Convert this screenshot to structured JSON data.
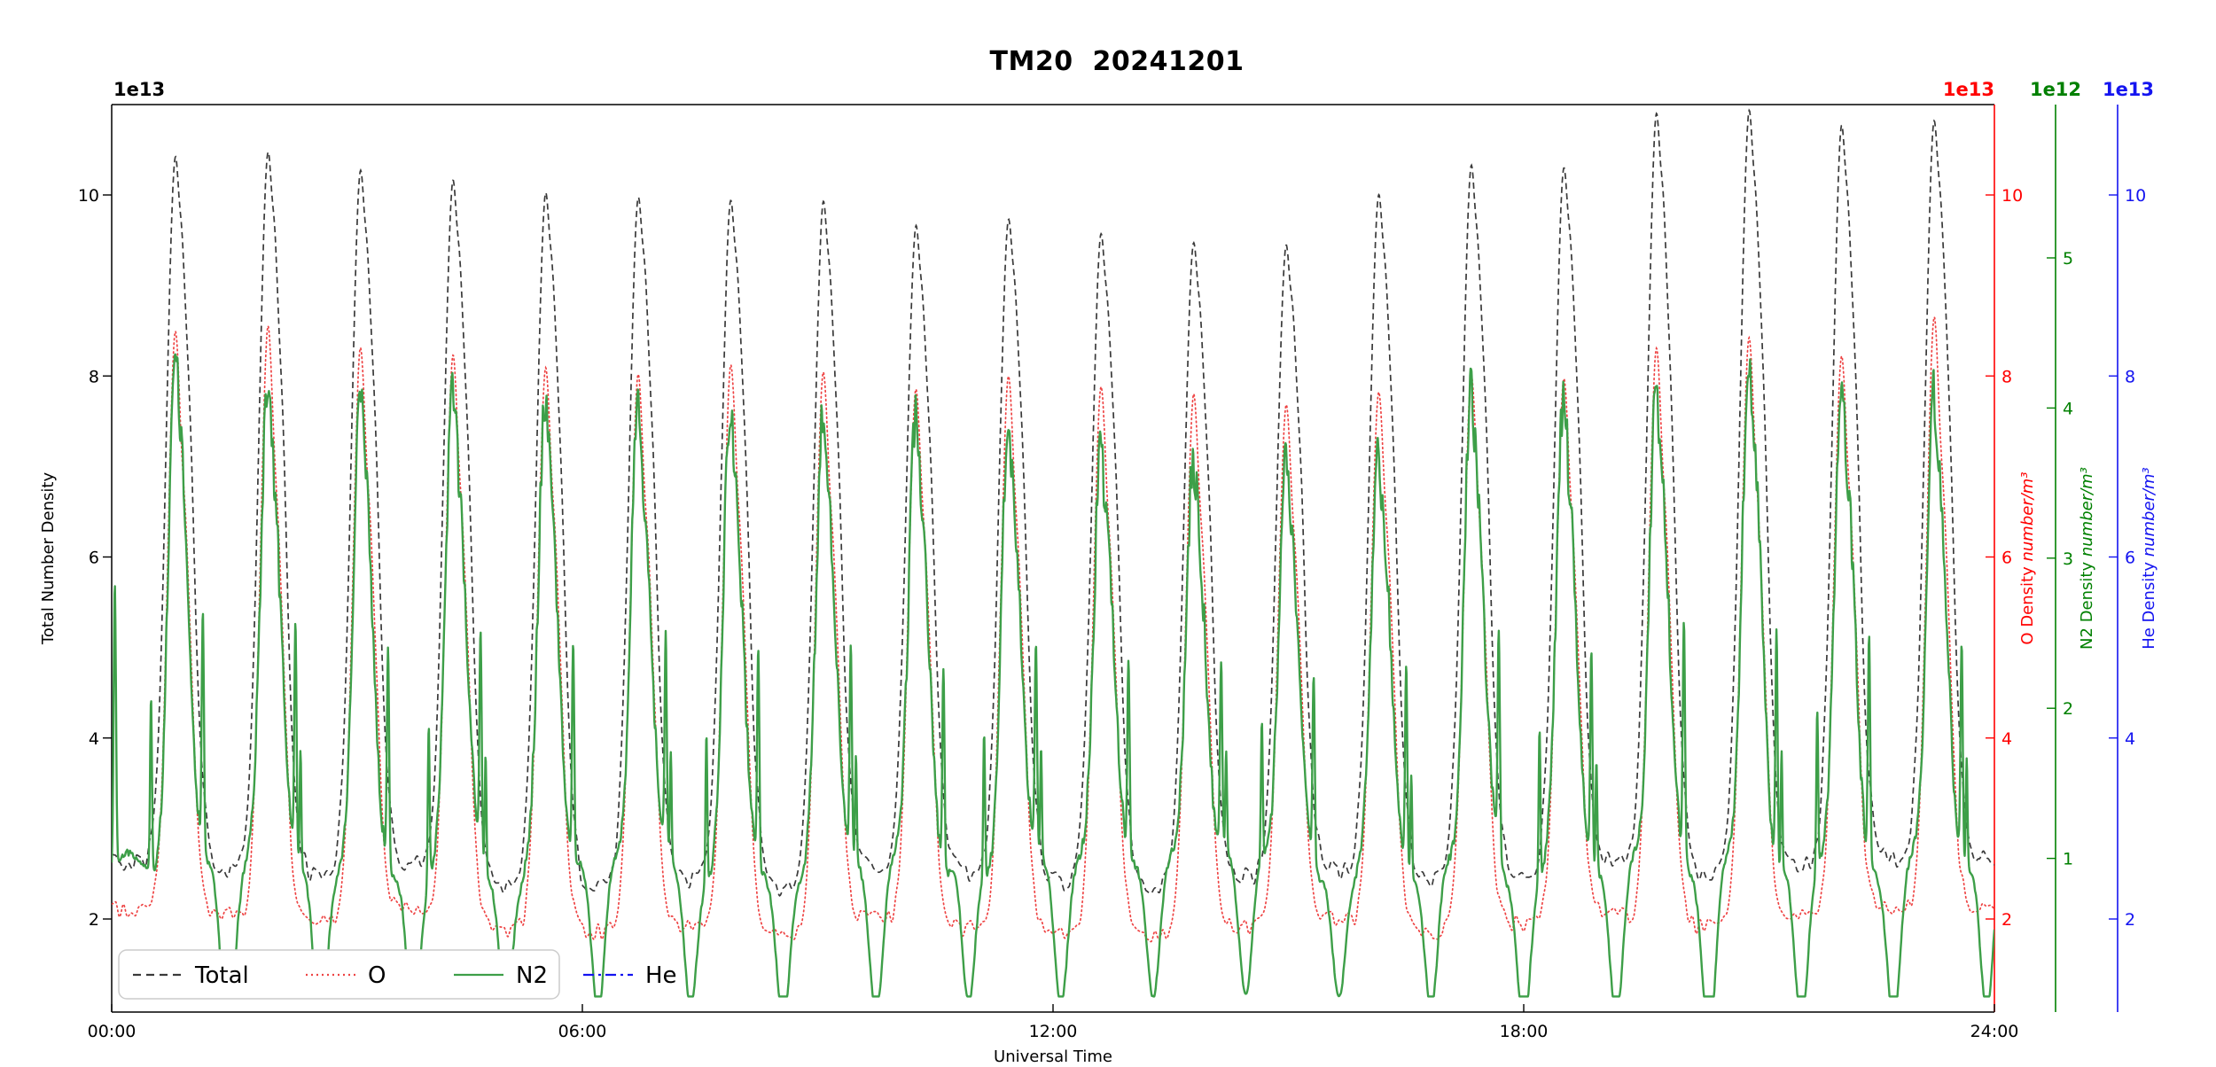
{
  "title": "TM20  20241201",
  "chart_data": {
    "type": "line",
    "title": "TM20  20241201",
    "xlabel": "Universal Time",
    "x_axis": {
      "ticks": [
        "00:00",
        "06:00",
        "12:00",
        "18:00",
        "24:00"
      ],
      "range_hours": [
        0,
        24
      ],
      "grid": false
    },
    "axes": {
      "left": {
        "offset_text": "1e13",
        "label": "Total Number Density",
        "unit": "",
        "ticks": [
          2,
          4,
          6,
          8,
          10
        ],
        "range_1e13": [
          1,
          11
        ],
        "color": "#000000"
      },
      "o": {
        "offset_text": "1e13",
        "label": "O Density ",
        "unit": "number/m³",
        "ticks": [
          2,
          4,
          6,
          8,
          10
        ],
        "range_1e13": [
          1,
          11
        ],
        "color": "#ff0000"
      },
      "n2": {
        "offset_text": "1e12",
        "label": "N2 Density ",
        "unit": "number/m³",
        "ticks": [
          1,
          2,
          3,
          4,
          5
        ],
        "range_1e12": [
          0,
          6
        ],
        "color": "#008000"
      },
      "he": {
        "offset_text": "1e13",
        "label": "He Density ",
        "unit": "number/m³",
        "ticks": [
          2,
          4,
          6,
          8,
          10
        ],
        "range_1e13": [
          1,
          11
        ],
        "color": "#1414f0"
      }
    },
    "legend": {
      "position": "lower left",
      "entries": [
        {
          "label": "Total",
          "color": "#3a3a3a",
          "style": "dashed"
        },
        {
          "label": "O",
          "color": "#ee4444",
          "style": "dotted"
        },
        {
          "label": "N2",
          "color": "#3d9f48",
          "style": "solid"
        },
        {
          "label": "He",
          "color": "#1414f0",
          "style": "dashdot"
        }
      ]
    },
    "series_readings": {
      "description_total_o_in_1e13_n2_in_1e12": true,
      "orbit_period_hours": 1.18,
      "orbit_peak_times_h": [
        0.82,
        2.0,
        3.18,
        4.36,
        5.54,
        6.72,
        7.9,
        9.08,
        10.26,
        11.44,
        12.62,
        13.8,
        14.98,
        16.16,
        17.34,
        18.52,
        19.7,
        20.88,
        22.06,
        23.24
      ],
      "total_peaks_1e13": [
        10.45,
        10.52,
        10.32,
        10.2,
        10.08,
        10.02,
        10.0,
        9.95,
        9.7,
        9.78,
        9.6,
        9.52,
        9.5,
        10.05,
        10.38,
        10.35,
        10.95,
        10.98,
        10.8,
        10.88
      ],
      "o_peaks_1e13": [
        8.58,
        8.62,
        8.4,
        8.3,
        8.2,
        8.1,
        8.22,
        8.12,
        7.92,
        8.09,
        7.94,
        7.87,
        7.78,
        7.92,
        8.1,
        8.05,
        8.42,
        8.52,
        8.32,
        8.73
      ],
      "n2_peaks_1e12": [
        4.75,
        4.5,
        4.34,
        4.47,
        4.35,
        4.3,
        4.28,
        4.2,
        4.12,
        4.24,
        4.01,
        3.85,
        3.92,
        4.06,
        4.45,
        4.32,
        4.55,
        4.6,
        4.5,
        4.4
      ],
      "total_minima_1e13": [
        2.65,
        2.55,
        2.45,
        2.6,
        2.4,
        2.3,
        2.45,
        2.35,
        2.6,
        2.5,
        2.4,
        2.35,
        2.45,
        2.55,
        2.4,
        2.5,
        2.6,
        2.45,
        2.55,
        2.65,
        2.7
      ],
      "o_minima_1e13": [
        2.15,
        2.05,
        1.95,
        2.1,
        1.9,
        1.85,
        1.95,
        1.82,
        2.0,
        1.9,
        1.85,
        1.8,
        1.9,
        2.0,
        1.85,
        1.95,
        2.05,
        1.9,
        2.0,
        2.1,
        2.15
      ],
      "n2_base_1e12": 0.95,
      "he": {
        "visible": false,
        "values": []
      }
    }
  }
}
